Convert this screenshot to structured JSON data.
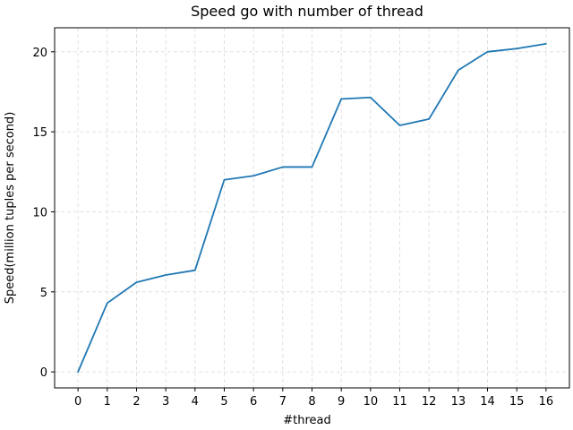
{
  "chart_data": {
    "type": "line",
    "title": "Speed go with number of thread",
    "xlabel": "#thread",
    "ylabel": "Speed(million tuples per second)",
    "x": [
      0,
      1,
      2,
      3,
      4,
      5,
      6,
      7,
      8,
      9,
      10,
      11,
      12,
      13,
      14,
      15,
      16
    ],
    "y": [
      0,
      4.3,
      5.6,
      6.05,
      6.35,
      12.0,
      12.25,
      12.8,
      12.8,
      17.05,
      17.15,
      15.4,
      15.8,
      18.85,
      20.0,
      20.2,
      20.5
    ],
    "xlim": [
      -0.8,
      16.8
    ],
    "ylim": [
      -1.0,
      21.5
    ],
    "xticks": [
      0,
      1,
      2,
      3,
      4,
      5,
      6,
      7,
      8,
      9,
      10,
      11,
      12,
      13,
      14,
      15,
      16
    ],
    "yticks": [
      0,
      5,
      10,
      15,
      20
    ],
    "grid": true,
    "line_color": "#1f77b4",
    "grid_color": "#d9d9d9"
  }
}
